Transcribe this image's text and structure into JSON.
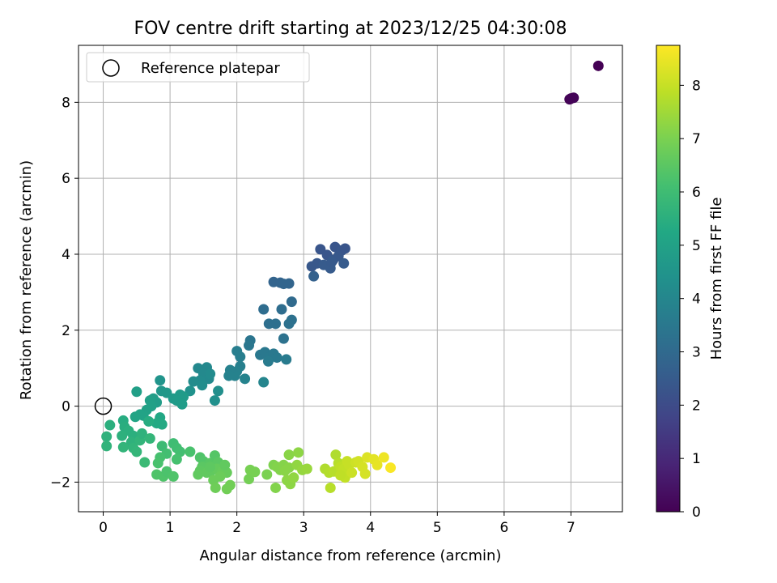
{
  "chart_data": {
    "type": "scatter",
    "title": "FOV centre drift starting at 2023/12/25 04:30:08",
    "xlabel": "Angular distance from reference (arcmin)",
    "ylabel": "Rotation from reference (arcmin)",
    "xlim": [
      -0.37,
      7.77
    ],
    "ylim": [
      -2.78,
      9.5
    ],
    "xticks": [
      0,
      1,
      2,
      3,
      4,
      5,
      6,
      7
    ],
    "yticks": [
      -2,
      0,
      2,
      4,
      6,
      8
    ],
    "grid": true,
    "legend": {
      "position": "top-left",
      "label": "Reference platepar"
    },
    "reference_point": {
      "x": 0,
      "y": 0
    },
    "colorbar": {
      "label": "Hours from first FF file",
      "colormap": "viridis",
      "range": [
        0,
        8.75
      ],
      "ticks": [
        0,
        1,
        2,
        3,
        4,
        5,
        6,
        7,
        8
      ]
    },
    "points": [
      [
        6.98,
        8.08,
        0.05
      ],
      [
        7.04,
        8.12,
        0.1
      ],
      [
        7.41,
        8.96,
        0.0
      ],
      [
        7.0,
        8.1,
        0.08
      ],
      [
        3.12,
        3.68,
        2.4
      ],
      [
        3.2,
        3.76,
        2.4
      ],
      [
        3.25,
        4.13,
        2.3
      ],
      [
        3.3,
        3.72,
        2.5
      ],
      [
        3.35,
        3.98,
        2.3
      ],
      [
        3.4,
        3.63,
        2.5
      ],
      [
        3.44,
        3.85,
        2.4
      ],
      [
        3.47,
        4.19,
        2.3
      ],
      [
        3.52,
        3.95,
        2.4
      ],
      [
        3.57,
        4.1,
        2.35
      ],
      [
        3.6,
        3.76,
        2.5
      ],
      [
        3.62,
        4.15,
        2.3
      ],
      [
        3.15,
        3.42,
        2.7
      ],
      [
        3.42,
        3.8,
        2.45
      ],
      [
        2.55,
        3.27,
        2.8
      ],
      [
        2.65,
        3.25,
        2.8
      ],
      [
        2.7,
        3.22,
        2.85
      ],
      [
        2.78,
        3.23,
        2.85
      ],
      [
        2.82,
        2.75,
        3.0
      ],
      [
        2.4,
        2.55,
        3.1
      ],
      [
        2.67,
        2.55,
        3.1
      ],
      [
        2.48,
        2.17,
        3.2
      ],
      [
        2.58,
        2.17,
        3.2
      ],
      [
        2.78,
        2.17,
        3.25
      ],
      [
        2.82,
        2.27,
        3.25
      ],
      [
        2.7,
        1.78,
        3.3
      ],
      [
        2.2,
        1.73,
        3.4
      ],
      [
        2.18,
        1.6,
        3.45
      ],
      [
        2.35,
        1.35,
        3.5
      ],
      [
        2.42,
        1.42,
        3.5
      ],
      [
        2.5,
        1.3,
        3.55
      ],
      [
        2.55,
        1.38,
        3.5
      ],
      [
        2.6,
        1.28,
        3.55
      ],
      [
        2.74,
        1.23,
        3.6
      ],
      [
        2.47,
        1.18,
        3.6
      ],
      [
        2.0,
        1.45,
        3.7
      ],
      [
        2.05,
        1.3,
        3.7
      ],
      [
        2.05,
        1.05,
        3.75
      ],
      [
        2.0,
        0.92,
        3.8
      ],
      [
        1.97,
        0.8,
        3.85
      ],
      [
        2.12,
        0.72,
        3.9
      ],
      [
        1.9,
        0.95,
        3.8
      ],
      [
        1.88,
        0.8,
        3.85
      ],
      [
        2.4,
        0.63,
        3.95
      ],
      [
        1.42,
        1.0,
        4.05
      ],
      [
        1.55,
        1.02,
        4.05
      ],
      [
        1.5,
        0.85,
        4.1
      ],
      [
        1.58,
        0.72,
        4.1
      ],
      [
        1.6,
        0.85,
        4.15
      ],
      [
        1.45,
        0.68,
        4.15
      ],
      [
        1.35,
        0.65,
        4.2
      ],
      [
        1.72,
        0.4,
        4.3
      ],
      [
        1.67,
        0.15,
        4.35
      ],
      [
        1.3,
        0.4,
        4.4
      ],
      [
        1.48,
        0.55,
        4.25
      ],
      [
        0.85,
        0.68,
        4.5
      ],
      [
        0.87,
        0.4,
        4.6
      ],
      [
        0.95,
        0.35,
        4.65
      ],
      [
        1.05,
        0.2,
        4.7
      ],
      [
        1.15,
        0.3,
        4.7
      ],
      [
        1.2,
        0.25,
        4.75
      ],
      [
        1.1,
        0.15,
        4.75
      ],
      [
        0.75,
        0.2,
        4.85
      ],
      [
        0.8,
        0.1,
        4.85
      ],
      [
        0.7,
        0.15,
        4.9
      ],
      [
        0.72,
        0.0,
        4.95
      ],
      [
        0.65,
        -0.1,
        5.0
      ],
      [
        0.6,
        -0.25,
        5.05
      ],
      [
        0.55,
        -0.22,
        5.05
      ],
      [
        0.48,
        -0.28,
        5.1
      ],
      [
        0.5,
        0.38,
        4.9
      ],
      [
        1.18,
        0.05,
        4.8
      ],
      [
        0.85,
        -0.3,
        5.2
      ],
      [
        0.8,
        -0.45,
        5.3
      ],
      [
        0.88,
        -0.48,
        5.3
      ],
      [
        0.3,
        -0.38,
        5.4
      ],
      [
        0.32,
        -0.55,
        5.45
      ],
      [
        0.38,
        -0.65,
        5.5
      ],
      [
        0.45,
        -0.78,
        5.5
      ],
      [
        0.42,
        -0.95,
        5.6
      ],
      [
        0.28,
        -0.78,
        5.55
      ],
      [
        0.1,
        -0.5,
        5.5
      ],
      [
        0.05,
        -0.8,
        5.6
      ],
      [
        0.05,
        -1.05,
        5.65
      ],
      [
        0.3,
        -1.08,
        5.7
      ],
      [
        0.45,
        -1.1,
        5.7
      ],
      [
        0.5,
        -1.2,
        5.75
      ],
      [
        0.55,
        -0.9,
        5.7
      ],
      [
        0.58,
        -0.72,
        5.6
      ],
      [
        0.68,
        -0.4,
        5.4
      ],
      [
        0.7,
        -0.85,
        5.75
      ],
      [
        0.62,
        -1.48,
        5.9
      ],
      [
        0.88,
        -1.05,
        5.95
      ],
      [
        1.05,
        -0.98,
        6.0
      ],
      [
        1.1,
        -1.1,
        6.05
      ],
      [
        0.95,
        -1.25,
        6.1
      ],
      [
        1.15,
        -1.2,
        6.1
      ],
      [
        1.1,
        -1.4,
        6.15
      ],
      [
        0.85,
        -1.35,
        6.15
      ],
      [
        0.82,
        -1.5,
        6.2
      ],
      [
        0.8,
        -1.8,
        6.3
      ],
      [
        0.9,
        -1.85,
        6.3
      ],
      [
        0.95,
        -1.72,
        6.25
      ],
      [
        1.05,
        -1.85,
        6.3
      ],
      [
        1.3,
        -1.2,
        6.2
      ],
      [
        1.45,
        -1.35,
        6.3
      ],
      [
        1.5,
        -1.45,
        6.35
      ],
      [
        1.55,
        -1.55,
        6.4
      ],
      [
        1.6,
        -1.5,
        6.45
      ],
      [
        1.67,
        -1.3,
        6.4
      ],
      [
        1.72,
        -1.48,
        6.5
      ],
      [
        1.48,
        -1.6,
        6.5
      ],
      [
        1.45,
        -1.7,
        6.55
      ],
      [
        1.42,
        -1.8,
        6.6
      ],
      [
        1.55,
        -1.75,
        6.6
      ],
      [
        1.62,
        -1.7,
        6.6
      ],
      [
        1.7,
        -1.65,
        6.65
      ],
      [
        1.78,
        -1.72,
        6.7
      ],
      [
        1.85,
        -1.75,
        6.7
      ],
      [
        1.75,
        -1.85,
        6.75
      ],
      [
        1.65,
        -1.95,
        6.75
      ],
      [
        1.68,
        -2.15,
        6.8
      ],
      [
        1.85,
        -2.18,
        6.85
      ],
      [
        1.9,
        -2.08,
        6.85
      ],
      [
        1.82,
        -1.55,
        6.6
      ],
      [
        1.6,
        -1.6,
        6.55
      ],
      [
        2.18,
        -1.92,
        6.9
      ],
      [
        2.2,
        -1.68,
        6.95
      ],
      [
        2.27,
        -1.73,
        6.95
      ],
      [
        2.45,
        -1.8,
        7.0
      ],
      [
        2.55,
        -1.55,
        7.05
      ],
      [
        2.6,
        -1.6,
        7.1
      ],
      [
        2.58,
        -2.15,
        7.1
      ],
      [
        2.65,
        -1.68,
        7.1
      ],
      [
        2.7,
        -1.55,
        7.15
      ],
      [
        2.72,
        -1.7,
        7.2
      ],
      [
        2.78,
        -1.62,
        7.2
      ],
      [
        2.75,
        -1.95,
        7.25
      ],
      [
        2.8,
        -2.05,
        7.25
      ],
      [
        2.85,
        -1.88,
        7.3
      ],
      [
        2.78,
        -1.28,
        7.2
      ],
      [
        2.92,
        -1.22,
        7.25
      ],
      [
        2.9,
        -1.55,
        7.3
      ],
      [
        2.98,
        -1.68,
        7.35
      ],
      [
        3.05,
        -1.65,
        7.4
      ],
      [
        3.32,
        -1.65,
        7.7
      ],
      [
        3.38,
        -1.75,
        7.75
      ],
      [
        3.4,
        -2.15,
        7.8
      ],
      [
        3.45,
        -1.72,
        7.8
      ],
      [
        3.48,
        -1.28,
        7.7
      ],
      [
        3.52,
        -1.5,
        7.8
      ],
      [
        3.55,
        -1.6,
        7.9
      ],
      [
        3.6,
        -1.65,
        7.95
      ],
      [
        3.62,
        -1.88,
        7.95
      ],
      [
        3.65,
        -1.45,
        8.0
      ],
      [
        3.68,
        -1.55,
        8.0
      ],
      [
        3.72,
        -1.75,
        8.05
      ],
      [
        3.78,
        -1.48,
        8.1
      ],
      [
        3.82,
        -1.45,
        8.15
      ],
      [
        3.88,
        -1.6,
        8.2
      ],
      [
        3.92,
        -1.78,
        8.2
      ],
      [
        3.95,
        -1.35,
        8.3
      ],
      [
        4.05,
        -1.4,
        8.4
      ],
      [
        4.1,
        -1.55,
        8.45
      ],
      [
        4.2,
        -1.35,
        8.55
      ],
      [
        4.3,
        -1.62,
        8.7
      ],
      [
        3.55,
        -1.82,
        7.9
      ]
    ]
  }
}
